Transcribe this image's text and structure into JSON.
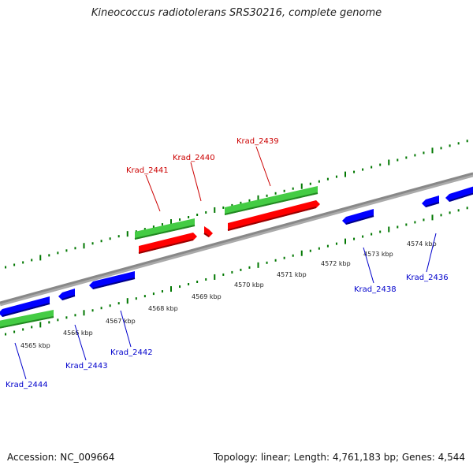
{
  "title": "Kineococcus radiotolerans SRS30216, complete genome",
  "accession": "Accession: NC_009664",
  "summary": "Topology: linear; Length: 4,761,183 bp; Genes: 4,544",
  "colors": {
    "forward_gene": "#ff0000",
    "reverse_gene": "#0000ff",
    "cds": "#44cc44",
    "backbone": "#888888",
    "tick": "#007700",
    "label_forward": "#cc0000",
    "label_reverse": "#0000cc"
  },
  "scale_labels": [
    "4565 kbp",
    "4566 kbp",
    "4567 kbp",
    "4568 kbp",
    "4569 kbp",
    "4570 kbp",
    "4571 kbp",
    "4572 kbp",
    "4573 kbp",
    "4574 kbp"
  ],
  "forward_genes": [
    {
      "name": "Krad_2441"
    },
    {
      "name": "Krad_2440"
    },
    {
      "name": "Krad_2439"
    }
  ],
  "reverse_genes": [
    {
      "name": "Krad_2444"
    },
    {
      "name": "Krad_2443"
    },
    {
      "name": "Krad_2442"
    },
    {
      "name": "Krad_2438"
    },
    {
      "name": "Krad_2436"
    }
  ]
}
